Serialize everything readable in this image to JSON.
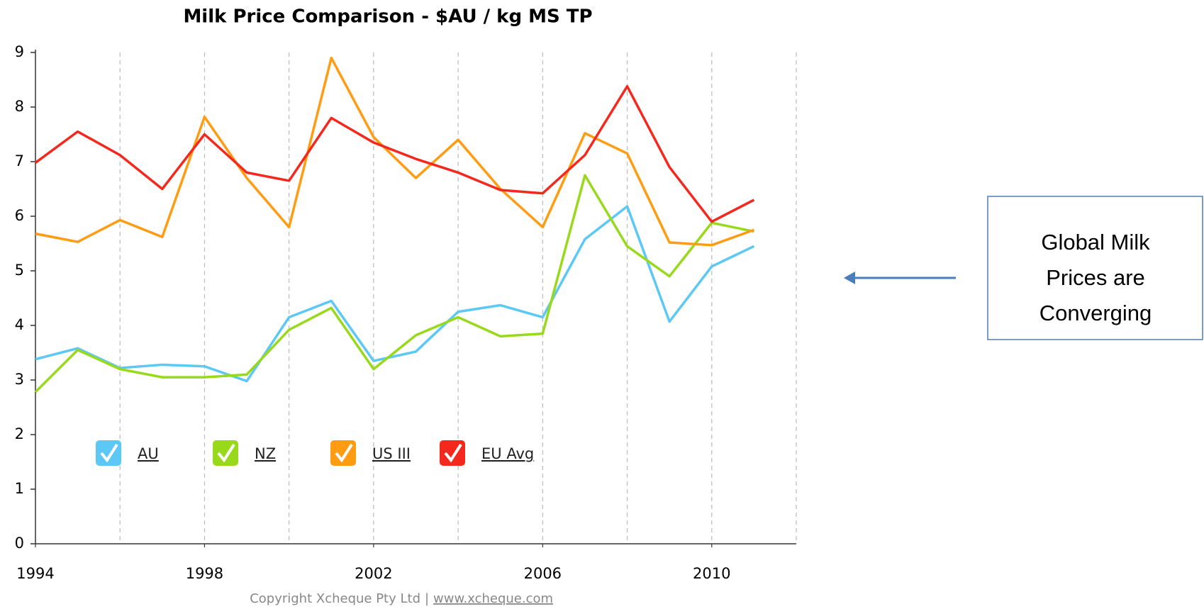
{
  "chart_data": {
    "type": "line",
    "title": "Milk Price Comparison - $AU / kg MS TP",
    "x": [
      1994,
      1995,
      1996,
      1997,
      1998,
      1999,
      2000,
      2001,
      2002,
      2003,
      2004,
      2005,
      2006,
      2007,
      2008,
      2009,
      2010,
      2011
    ],
    "series": [
      {
        "name": "AU",
        "color": "#5bc8f5",
        "values": [
          3.38,
          3.58,
          3.22,
          3.28,
          3.25,
          2.98,
          4.15,
          4.45,
          3.35,
          3.52,
          4.25,
          4.37,
          4.15,
          5.58,
          6.18,
          4.07,
          5.08,
          5.45
        ]
      },
      {
        "name": "NZ",
        "color": "#99d91c",
        "values": [
          2.78,
          3.55,
          3.2,
          3.05,
          3.05,
          3.1,
          3.92,
          4.32,
          3.2,
          3.82,
          4.15,
          3.8,
          3.85,
          6.75,
          5.45,
          4.9,
          5.88,
          5.72
        ]
      },
      {
        "name": "US III",
        "color": "#ff9c12",
        "values": [
          5.68,
          5.53,
          5.93,
          5.62,
          7.82,
          6.7,
          5.8,
          8.9,
          7.45,
          6.7,
          7.4,
          6.5,
          5.8,
          7.52,
          7.15,
          5.52,
          5.47,
          5.75
        ]
      },
      {
        "name": "EU Avg",
        "color": "#f5281e",
        "values": [
          6.98,
          7.55,
          7.12,
          6.5,
          7.5,
          6.8,
          6.65,
          7.8,
          7.35,
          7.05,
          6.8,
          6.48,
          6.42,
          7.12,
          8.38,
          6.9,
          5.9,
          6.3
        ]
      }
    ],
    "xlim": [
      1994,
      2012
    ],
    "xticks": [
      1994,
      1998,
      2002,
      2006,
      2010
    ],
    "xgrid": [
      1996,
      1998,
      2000,
      2002,
      2004,
      2006,
      2008,
      2010,
      2012
    ],
    "ylim": [
      0,
      9
    ],
    "yticks": [
      0,
      1,
      2,
      3,
      4,
      5,
      6,
      7,
      8,
      9
    ],
    "footer": {
      "text": "Copyright Xcheque Pty Ltd",
      "separator": "|",
      "link": "www.xcheque.com"
    },
    "annotation": [
      "Global Milk",
      "Prices are",
      "Converging"
    ]
  }
}
